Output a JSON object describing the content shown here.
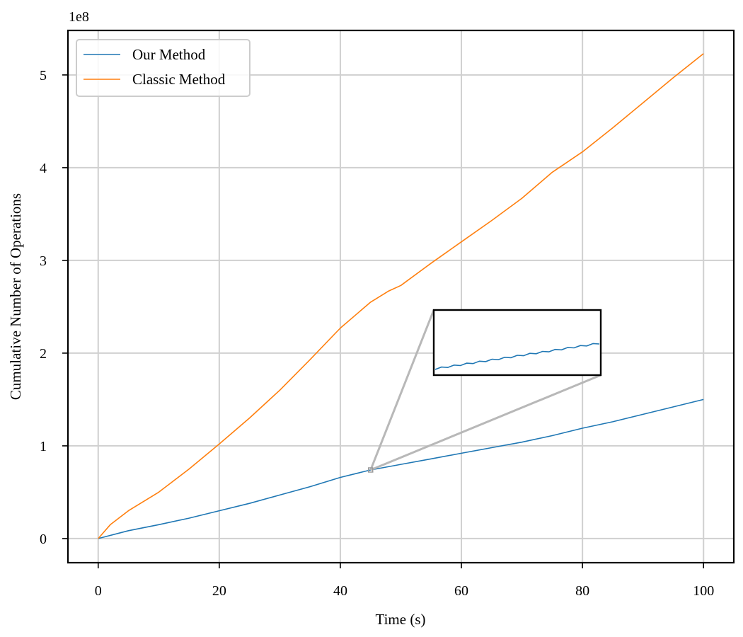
{
  "chart_data": {
    "type": "line",
    "xlabel": "Time (s)",
    "ylabel": "Cumulative Number of Operations",
    "y_offset_label": "1e8",
    "xlim": [
      -5,
      105
    ],
    "ylim": [
      -0.26,
      5.48
    ],
    "y_unit_multiplier": 100000000,
    "xticks": [
      0,
      20,
      40,
      60,
      80,
      100
    ],
    "xtick_labels": [
      "0",
      "20",
      "40",
      "60",
      "80",
      "100"
    ],
    "yticks": [
      0,
      1,
      2,
      3,
      4,
      5
    ],
    "ytick_labels": [
      "0",
      "1",
      "2",
      "3",
      "4",
      "5"
    ],
    "grid": true,
    "legend_position": "upper-left",
    "series": [
      {
        "name": "Our Method",
        "color": "#1f77b4",
        "x": [
          0,
          5,
          10,
          15,
          20,
          25,
          30,
          35,
          40,
          45,
          50,
          55,
          60,
          65,
          70,
          75,
          80,
          85,
          90,
          95,
          100
        ],
        "y": [
          0,
          0.085,
          0.15,
          0.22,
          0.3,
          0.38,
          0.47,
          0.56,
          0.66,
          0.74,
          0.8,
          0.86,
          0.92,
          0.98,
          1.04,
          1.11,
          1.19,
          1.26,
          1.34,
          1.42,
          1.5
        ]
      },
      {
        "name": "Classic Method",
        "color": "#ff7f0e",
        "x": [
          0,
          2,
          5,
          10,
          15,
          20,
          25,
          30,
          35,
          40,
          45,
          48,
          50,
          55,
          60,
          65,
          70,
          75,
          80,
          85,
          90,
          95,
          100
        ],
        "y": [
          0,
          0.15,
          0.3,
          0.5,
          0.75,
          1.02,
          1.3,
          1.6,
          1.93,
          2.27,
          2.55,
          2.67,
          2.73,
          2.97,
          3.2,
          3.43,
          3.67,
          3.95,
          4.17,
          4.43,
          4.7,
          4.97,
          5.23
        ]
      }
    ],
    "inset": {
      "description_zoom_x": [
        45,
        47
      ],
      "zoom_region_data": {
        "x": 45,
        "y": 0.74
      }
    }
  }
}
